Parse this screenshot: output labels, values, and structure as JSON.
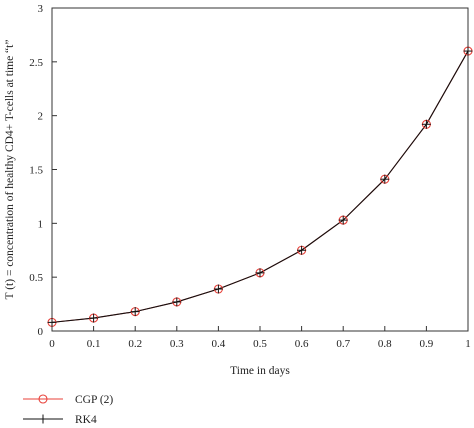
{
  "chart_data": {
    "type": "line",
    "xlabel": "Time in days",
    "ylabel": "T (t) = concentration of healthy CD4+ T-cells at time “t”",
    "xlim": [
      0,
      1
    ],
    "ylim": [
      0,
      3
    ],
    "xticks": [
      "0",
      "0.1",
      "0.2",
      "0.3",
      "0.4",
      "0.5",
      "0.6",
      "0.7",
      "0.8",
      "0.9",
      "1"
    ],
    "yticks": [
      "0",
      "0.5",
      "1",
      "1.5",
      "2",
      "2.5",
      "3"
    ],
    "grid": false,
    "legend_position": "bottom-left, below plot",
    "x": [
      0,
      0.1,
      0.2,
      0.3,
      0.4,
      0.5,
      0.6,
      0.7,
      0.8,
      0.9,
      1.0
    ],
    "series": [
      {
        "name": "CGP (2)",
        "color": "#e8413a",
        "marker": "circle",
        "values": [
          0.08,
          0.12,
          0.18,
          0.27,
          0.39,
          0.54,
          0.75,
          1.03,
          1.41,
          1.92,
          2.6
        ]
      },
      {
        "name": "RK4",
        "color": "#111111",
        "marker": "plus",
        "values": [
          0.08,
          0.12,
          0.18,
          0.27,
          0.39,
          0.54,
          0.75,
          1.03,
          1.41,
          1.92,
          2.6
        ]
      }
    ]
  }
}
